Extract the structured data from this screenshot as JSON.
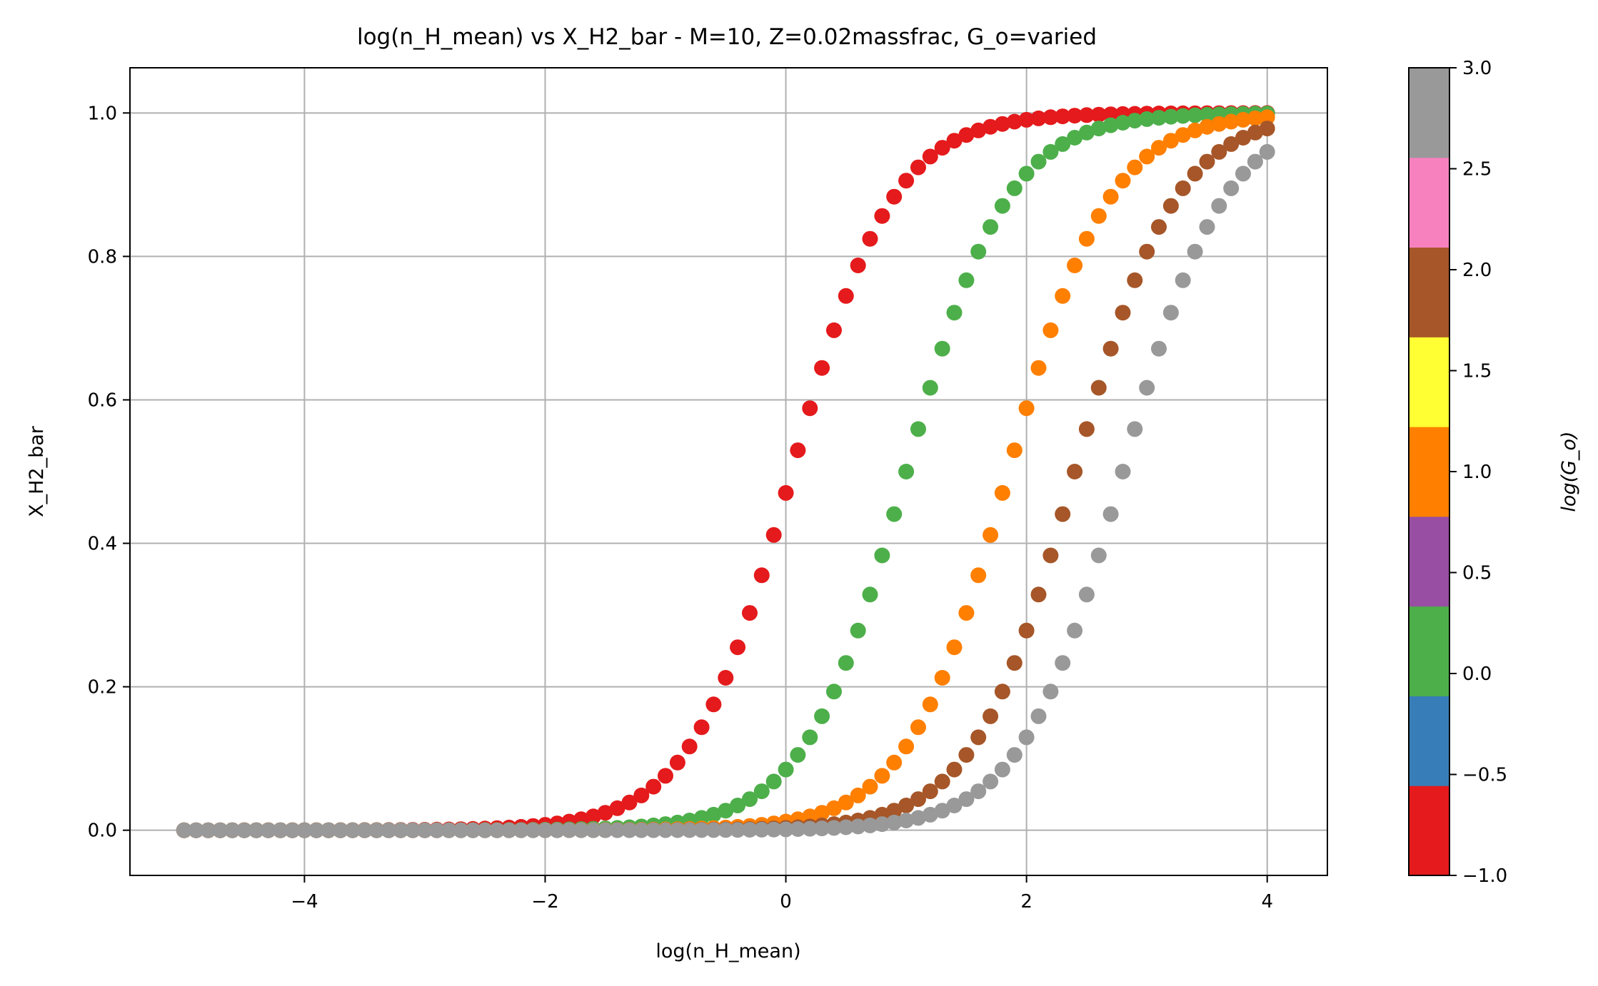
{
  "chart_data": {
    "type": "scatter",
    "title": "log(n_H_mean) vs X_H2_bar - M=10, Z=0.02massfrac, G_o=varied",
    "xlabel": "log(n_H_mean)",
    "ylabel": "X_H2_bar",
    "xlim": [
      -5.45,
      4.5
    ],
    "ylim": [
      -0.063,
      1.063
    ],
    "x_ticks": [
      {
        "value": -4,
        "label": "−4"
      },
      {
        "value": -2,
        "label": "−2"
      },
      {
        "value": 0,
        "label": "0"
      },
      {
        "value": 2,
        "label": "2"
      },
      {
        "value": 4,
        "label": "4"
      }
    ],
    "y_ticks": [
      {
        "value": 0.0,
        "label": "0.0"
      },
      {
        "value": 0.2,
        "label": "0.2"
      },
      {
        "value": 0.4,
        "label": "0.4"
      },
      {
        "value": 0.6,
        "label": "0.6"
      },
      {
        "value": 0.8,
        "label": "0.8"
      },
      {
        "value": 1.0,
        "label": "1.0"
      }
    ],
    "grid": true,
    "x_range": {
      "start": -5,
      "end": 4,
      "step": 0.1
    },
    "series": [
      {
        "log_G0": -1,
        "color": "#e41a1c",
        "x_half": 0.05,
        "width": 0.42
      },
      {
        "log_G0": 0,
        "color": "#4daf4a",
        "x_half": 1.0,
        "width": 0.42
      },
      {
        "log_G0": 1,
        "color": "#ff7f00",
        "x_half": 1.85,
        "width": 0.42
      },
      {
        "log_G0": 2,
        "color": "#a65628",
        "x_half": 2.4,
        "width": 0.42
      },
      {
        "log_G0": 3,
        "color": "#999999",
        "x_half": 2.8,
        "width": 0.42
      }
    ],
    "colorbar": {
      "label": "log(G_o)",
      "range": [
        -1.0,
        3.0
      ],
      "segments": [
        "#e41a1c",
        "#377eb8",
        "#4daf4a",
        "#984ea3",
        "#ff7f00",
        "#ffff33",
        "#a65628",
        "#f781bf",
        "#999999"
      ],
      "ticks": [
        {
          "value": -1.0,
          "label": "−1.0"
        },
        {
          "value": -0.5,
          "label": "−0.5"
        },
        {
          "value": 0.0,
          "label": "0.0"
        },
        {
          "value": 0.5,
          "label": "0.5"
        },
        {
          "value": 1.0,
          "label": "1.0"
        },
        {
          "value": 1.5,
          "label": "1.5"
        },
        {
          "value": 2.0,
          "label": "2.0"
        },
        {
          "value": 2.5,
          "label": "2.5"
        },
        {
          "value": 3.0,
          "label": "3.0"
        }
      ]
    }
  }
}
